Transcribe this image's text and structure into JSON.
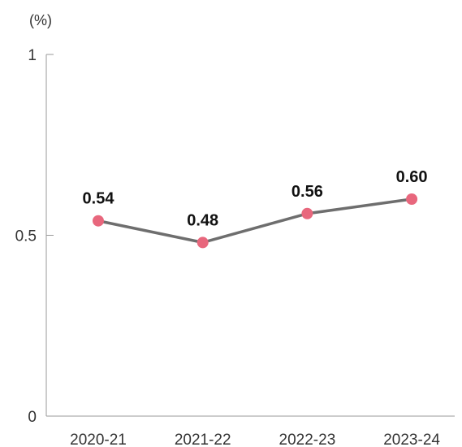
{
  "chart_data": {
    "type": "line",
    "ylabel": "(%)",
    "xlabel": "",
    "title": "",
    "categories": [
      "2020-21",
      "2021-22",
      "2022-23",
      "2023-24"
    ],
    "series": [
      {
        "values": [
          0.54,
          0.48,
          0.56,
          0.6
        ],
        "data_labels": [
          "0.54",
          "0.48",
          "0.56",
          "0.60"
        ],
        "line_color": "#6e6e6e",
        "marker_color": "#e8677d"
      }
    ],
    "ylim": [
      0,
      1
    ],
    "yticks": [
      0,
      0.5,
      1
    ],
    "ytick_labels": [
      "0",
      "0.5",
      "1"
    ],
    "grid": false,
    "axis_color": "#9a9a9a"
  }
}
